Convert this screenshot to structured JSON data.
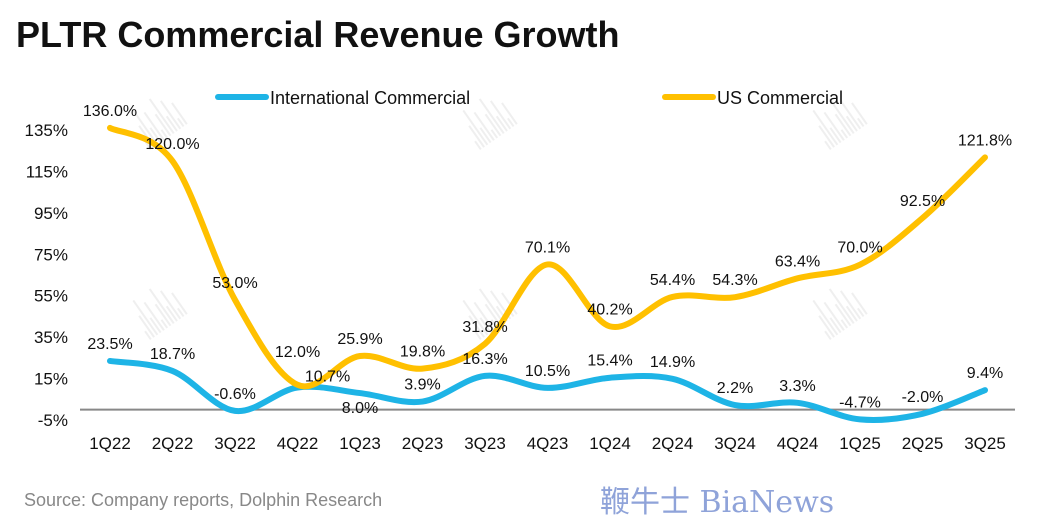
{
  "title": "PLTR Commercial Revenue Growth",
  "source": "Source: Company reports, Dolphin Research",
  "watermark": "DolphinResearch",
  "overlay_logo": "鞭牛士 BiaNews",
  "chart_data": {
    "type": "line",
    "title": "PLTR Commercial Revenue Growth",
    "categories": [
      "1Q22",
      "2Q22",
      "3Q22",
      "4Q22",
      "1Q23",
      "2Q23",
      "3Q23",
      "4Q23",
      "1Q24",
      "2Q24",
      "3Q24",
      "4Q24",
      "1Q25",
      "2Q25",
      "3Q25"
    ],
    "yticks": [
      "135%",
      "115%",
      "95%",
      "75%",
      "55%",
      "35%",
      "15%",
      "-5%"
    ],
    "ylim": [
      -5,
      135
    ],
    "legend_position": "top",
    "series": [
      {
        "name": "International Commercial",
        "color": "#1EB4E6",
        "values": [
          23.5,
          18.7,
          -0.6,
          10.7,
          8.0,
          3.9,
          16.3,
          10.5,
          15.4,
          14.9,
          2.2,
          3.3,
          -4.7,
          -2.0,
          9.4
        ],
        "labels": [
          "23.5%",
          "18.7%",
          "-0.6%",
          "10.7%",
          "8.0%",
          "3.9%",
          "16.3%",
          "10.5%",
          "15.4%",
          "14.9%",
          "2.2%",
          "3.3%",
          "-4.7%",
          "-2.0%",
          "9.4%"
        ]
      },
      {
        "name": "US Commercial",
        "color": "#FFC000",
        "values": [
          136.0,
          120.0,
          53.0,
          12.0,
          25.9,
          19.8,
          31.8,
          70.1,
          40.2,
          54.4,
          54.3,
          63.4,
          70.0,
          92.5,
          121.8
        ],
        "labels": [
          "136.0%",
          "120.0%",
          "53.0%",
          "12.0%",
          "25.9%",
          "19.8%",
          "31.8%",
          "70.1%",
          "40.2%",
          "54.4%",
          "54.3%",
          "63.4%",
          "70.0%",
          "92.5%",
          "121.8%"
        ]
      }
    ]
  }
}
